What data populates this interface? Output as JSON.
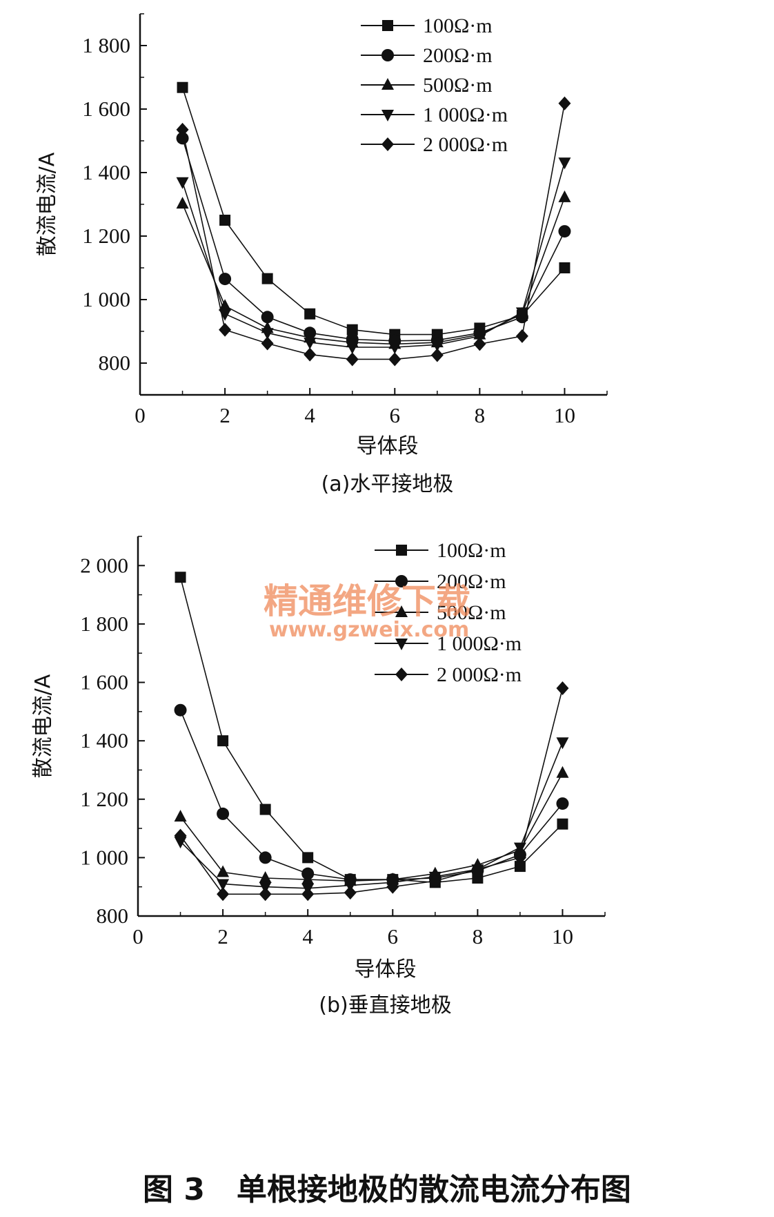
{
  "figure_title": "图 3   单根接地极的散流电流分布图",
  "watermark": {
    "text": "精通维修下载",
    "url": "www.gzweix.com",
    "color": "#f08a5a"
  },
  "chart_data": [
    {
      "type": "line",
      "title": "",
      "caption": "(a)水平接地极",
      "xlabel": "导体段",
      "ylabel": "散流电流/A",
      "xlim": [
        0,
        11
      ],
      "ylim": [
        700,
        1900
      ],
      "xticks": [
        0,
        2,
        4,
        6,
        8,
        10
      ],
      "xtick_labels": [
        "0",
        "2",
        "4",
        "6",
        "8",
        "10"
      ],
      "yticks": [
        800,
        1000,
        1200,
        1400,
        1600,
        1800
      ],
      "ytick_labels": [
        "800",
        "1 000",
        "1 200",
        "1 400",
        "1 600",
        "1 800"
      ],
      "grid": false,
      "legend_position": "top-right",
      "x": [
        1,
        2,
        3,
        4,
        5,
        6,
        7,
        8,
        9,
        10
      ],
      "series": [
        {
          "name": "100Ω·m",
          "marker": "square",
          "values": [
            1668,
            1250,
            1066,
            955,
            905,
            890,
            890,
            910,
            950,
            1100
          ]
        },
        {
          "name": "200Ω·m",
          "marker": "circle",
          "values": [
            1508,
            1065,
            945,
            895,
            875,
            870,
            872,
            895,
            945,
            1215
          ]
        },
        {
          "name": "500Ω·m",
          "marker": "triangle-up",
          "values": [
            1302,
            980,
            910,
            880,
            865,
            860,
            865,
            890,
            955,
            1322
          ]
        },
        {
          "name": "1 000Ω·m",
          "marker": "triangle-down",
          "values": [
            1370,
            955,
            895,
            865,
            850,
            850,
            858,
            885,
            960,
            1432
          ]
        },
        {
          "name": "2 000Ω·m",
          "marker": "diamond",
          "values": [
            1535,
            905,
            862,
            827,
            812,
            812,
            825,
            860,
            885,
            1618
          ]
        }
      ]
    },
    {
      "type": "line",
      "title": "",
      "caption": "(b)垂直接地极",
      "xlabel": "导体段",
      "ylabel": "散流电流/A",
      "xlim": [
        0,
        11
      ],
      "ylim": [
        800,
        2100
      ],
      "xticks": [
        0,
        2,
        4,
        6,
        8,
        10
      ],
      "xtick_labels": [
        "0",
        "2",
        "4",
        "6",
        "8",
        "10"
      ],
      "yticks": [
        800,
        1000,
        1200,
        1400,
        1600,
        1800,
        2000
      ],
      "ytick_labels": [
        "800",
        "1 000",
        "1 200",
        "1 400",
        "1 600",
        "1 800",
        "2 000"
      ],
      "grid": false,
      "legend_position": "top-right",
      "x": [
        1,
        2,
        3,
        4,
        5,
        6,
        7,
        8,
        9,
        10
      ],
      "series": [
        {
          "name": "100Ω·m",
          "marker": "square",
          "values": [
            1960,
            1400,
            1165,
            1000,
            925,
            925,
            915,
            930,
            970,
            1115
          ]
        },
        {
          "name": "200Ω·m",
          "marker": "circle",
          "values": [
            1505,
            1150,
            1000,
            945,
            925,
            925,
            930,
            955,
            1010,
            1185
          ]
        },
        {
          "name": "500Ω·m",
          "marker": "triangle-up",
          "values": [
            1140,
            950,
            930,
            925,
            920,
            925,
            945,
            975,
            1025,
            1290
          ]
        },
        {
          "name": "1 000Ω·m",
          "marker": "triangle-down",
          "values": [
            1055,
            910,
            900,
            895,
            905,
            915,
            935,
            960,
            1035,
            1395
          ]
        },
        {
          "name": "2 000Ω·m",
          "marker": "diamond",
          "values": [
            1075,
            875,
            875,
            875,
            880,
            900,
            920,
            960,
            1000,
            1580
          ]
        }
      ]
    }
  ]
}
